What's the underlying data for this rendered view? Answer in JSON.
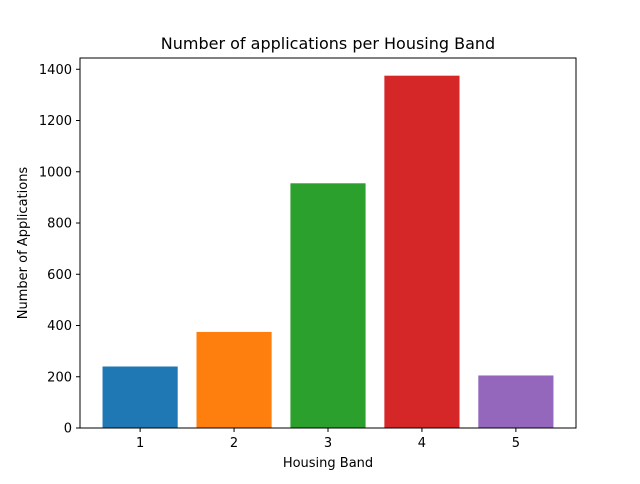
{
  "chart_data": {
    "type": "bar",
    "title": "Number of applications per Housing Band",
    "xlabel": "Housing Band",
    "ylabel": "Number of Applications",
    "categories": [
      "1",
      "2",
      "3",
      "4",
      "5"
    ],
    "values": [
      240,
      375,
      955,
      1375,
      205
    ],
    "colors": [
      "#1f77b4",
      "#ff7f0e",
      "#2ca02c",
      "#d62728",
      "#9467bd"
    ],
    "ylim": [
      0,
      1444
    ],
    "yticks": [
      0,
      200,
      400,
      600,
      800,
      1000,
      1200,
      1400
    ],
    "grid": false,
    "legend": "none"
  }
}
